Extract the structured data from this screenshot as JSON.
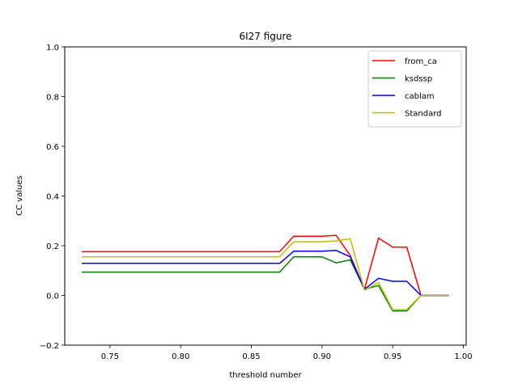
{
  "chart_data": {
    "type": "line",
    "title": "6I27 figure",
    "xlabel": "threshold number",
    "ylabel": "CC values",
    "xlim": [
      0.718,
      1.002
    ],
    "ylim": [
      -0.2,
      1.0
    ],
    "xticks": [
      "0.75",
      "0.80",
      "0.85",
      "0.90",
      "0.95",
      "1.00"
    ],
    "yticks": [
      "−0.2",
      "0.0",
      "0.2",
      "0.4",
      "0.6",
      "0.8",
      "1.0"
    ],
    "x": [
      0.73,
      0.74,
      0.75,
      0.76,
      0.77,
      0.78,
      0.79,
      0.8,
      0.81,
      0.82,
      0.83,
      0.84,
      0.85,
      0.86,
      0.87,
      0.88,
      0.89,
      0.9,
      0.91,
      0.92,
      0.93,
      0.94,
      0.95,
      0.96,
      0.97,
      0.98,
      0.99
    ],
    "series": [
      {
        "name": "from_ca",
        "color": "#ff0000",
        "values": [
          0.176,
          0.176,
          0.176,
          0.176,
          0.176,
          0.176,
          0.176,
          0.176,
          0.176,
          0.176,
          0.176,
          0.176,
          0.176,
          0.176,
          0.176,
          0.238,
          0.238,
          0.238,
          0.242,
          0.16,
          0.025,
          0.231,
          0.194,
          0.194,
          0.0,
          0.0,
          0.0
        ]
      },
      {
        "name": "ksdssp",
        "color": "#008000",
        "values": [
          0.094,
          0.094,
          0.094,
          0.094,
          0.094,
          0.094,
          0.094,
          0.094,
          0.094,
          0.094,
          0.094,
          0.094,
          0.094,
          0.094,
          0.094,
          0.155,
          0.155,
          0.155,
          0.131,
          0.143,
          0.025,
          0.04,
          -0.062,
          -0.062,
          0.0,
          0.0,
          0.0
        ]
      },
      {
        "name": "cablam",
        "color": "#0000ff",
        "values": [
          0.129,
          0.129,
          0.129,
          0.129,
          0.129,
          0.129,
          0.129,
          0.129,
          0.129,
          0.129,
          0.129,
          0.129,
          0.129,
          0.129,
          0.129,
          0.178,
          0.178,
          0.178,
          0.181,
          0.155,
          0.025,
          0.069,
          0.057,
          0.057,
          0.0,
          0.0,
          0.0
        ]
      },
      {
        "name": "Standard",
        "color": "#bfbf00",
        "values": [
          0.155,
          0.155,
          0.155,
          0.155,
          0.155,
          0.155,
          0.155,
          0.155,
          0.155,
          0.155,
          0.155,
          0.155,
          0.155,
          0.155,
          0.155,
          0.216,
          0.216,
          0.216,
          0.22,
          0.228,
          0.021,
          0.052,
          -0.057,
          -0.057,
          0.0,
          0.0,
          0.0
        ]
      }
    ],
    "grid": false,
    "legend_position": "top-right"
  }
}
